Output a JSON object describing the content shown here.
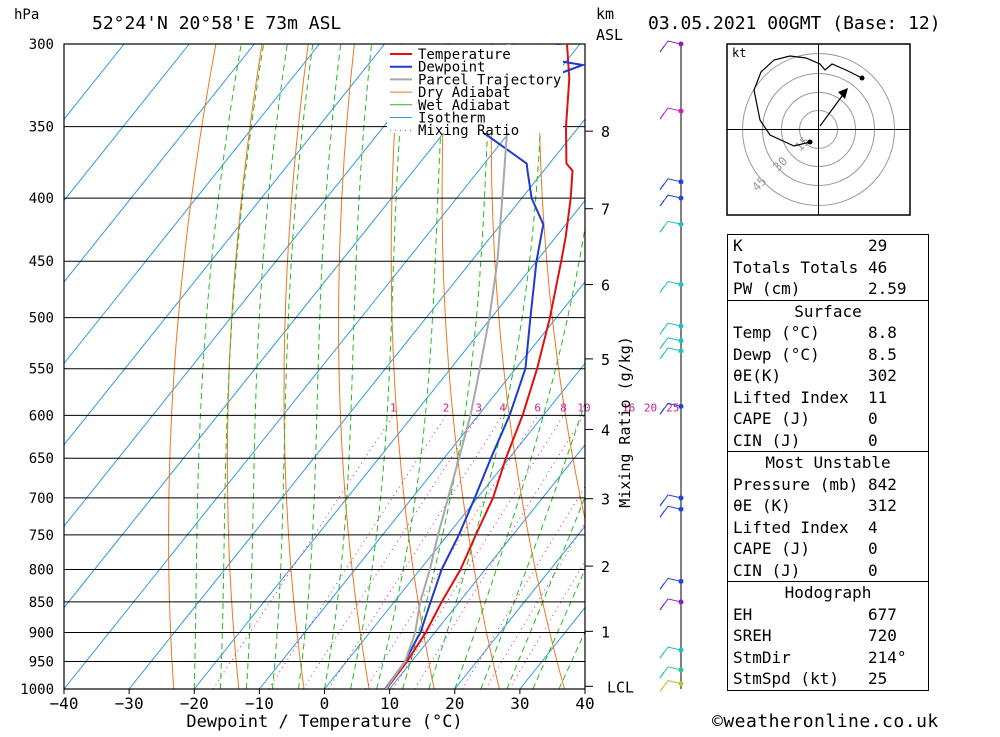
{
  "header": {
    "hpa_label": "hPa",
    "location": "52°24'N  20°58'E  73m  ASL",
    "km_label": "km",
    "asl_label": "ASL",
    "datetime": "03.05.2021  00GMT  (Base: 12)"
  },
  "chart_data": {
    "type": "line",
    "title": "52°24'N  20°58'E  73m  ASL",
    "xlabel": "Dewpoint / Temperature (°C)",
    "ylabel": "hPa",
    "x_ticks": [
      -40,
      -30,
      -20,
      -10,
      0,
      10,
      20,
      30,
      40
    ],
    "x_tick_labels": [
      "−40",
      "−30",
      "−20",
      "−10",
      "0",
      "10",
      "20",
      "30",
      "40"
    ],
    "xlim": [
      -40,
      40
    ],
    "pressure_levels": [
      300,
      350,
      400,
      450,
      500,
      550,
      600,
      650,
      700,
      750,
      800,
      850,
      900,
      950,
      1000
    ],
    "ylim": [
      1000,
      300
    ],
    "height_ticks_km": [
      "1",
      "2",
      "3",
      "4",
      "5",
      "6",
      "7",
      "8"
    ],
    "height_tick_pressures": [
      898,
      795,
      701,
      616,
      540,
      470,
      408,
      353
    ],
    "lcl_label": "LCL",
    "lcl_pressure": 995,
    "mixing_ratio_axis_label": "Mixing Ratio (g/kg)",
    "mixing_ratio_labels": [
      "1",
      "2",
      "3",
      "4",
      "6",
      "8",
      "10",
      "16",
      "20",
      "25"
    ],
    "legend": [
      "Temperature",
      "Dewpoint",
      "Parcel Trajectory",
      "Dry Adiabat",
      "Wet Adiabat",
      "Isotherm",
      "Mixing Ratio"
    ],
    "legend_position": "top-center",
    "series": [
      {
        "name": "Temperature",
        "color": "#dd1111",
        "points": [
          [
            1000,
            9.5
          ],
          [
            950,
            9.3
          ],
          [
            900,
            8.6
          ],
          [
            850,
            7.3
          ],
          [
            800,
            6.2
          ],
          [
            750,
            4.3
          ],
          [
            700,
            2.4
          ],
          [
            650,
            -0.5
          ],
          [
            600,
            -3.2
          ],
          [
            550,
            -6.7
          ],
          [
            500,
            -11
          ],
          [
            450,
            -16.2
          ],
          [
            430,
            -18.5
          ],
          [
            400,
            -22.5
          ],
          [
            380,
            -25.6
          ],
          [
            375,
            -27.4
          ],
          [
            350,
            -32
          ],
          [
            320,
            -37.4
          ],
          [
            300,
            -42
          ]
        ]
      },
      {
        "name": "Dewpoint",
        "color": "#1f3acc",
        "points": [
          [
            1000,
            9.3
          ],
          [
            950,
            9.0
          ],
          [
            910,
            8.0
          ],
          [
            900,
            7.8
          ],
          [
            875,
            6.7
          ],
          [
            850,
            5.6
          ],
          [
            800,
            3.3
          ],
          [
            750,
            1.7
          ],
          [
            700,
            -0.4
          ],
          [
            650,
            -2.8
          ],
          [
            600,
            -5.2
          ],
          [
            550,
            -8.5
          ],
          [
            500,
            -14
          ],
          [
            450,
            -20
          ],
          [
            420,
            -23.5
          ],
          [
            400,
            -28.5
          ],
          [
            380,
            -32.5
          ],
          [
            375,
            -33.5
          ],
          [
            350,
            -46
          ],
          [
            340,
            -50.5
          ],
          [
            330,
            -50.8
          ],
          [
            320,
            -41
          ],
          [
            312,
            -37
          ],
          [
            307,
            -46
          ],
          [
            300,
            -43
          ]
        ]
      },
      {
        "name": "Parcel Trajectory",
        "color": "#a8a8a8",
        "points": [
          [
            1000,
            9.4
          ],
          [
            950,
            9.0
          ],
          [
            900,
            7.0
          ],
          [
            850,
            4.0
          ],
          [
            800,
            1.5
          ],
          [
            750,
            -1.5
          ],
          [
            700,
            -4.5
          ],
          [
            650,
            -7.7
          ],
          [
            600,
            -11.2
          ],
          [
            550,
            -15.5
          ],
          [
            500,
            -20.3
          ],
          [
            450,
            -26
          ],
          [
            400,
            -33
          ],
          [
            350,
            -41
          ],
          [
            300,
            -51
          ]
        ]
      }
    ]
  },
  "wind_profile": {
    "points": [
      [
        300,
        "#8a1fc0"
      ],
      [
        340,
        "#c01fc0"
      ],
      [
        388,
        "#2244dd"
      ],
      [
        400,
        "#2244dd"
      ],
      [
        420,
        "#1fc0c0"
      ],
      [
        470,
        "#1fc0c0"
      ],
      [
        508,
        "#1fc0c0"
      ],
      [
        522,
        "#1fc0c0"
      ],
      [
        532,
        "#1fc0c0"
      ],
      [
        590,
        "#2244dd"
      ],
      [
        700,
        "#2244dd"
      ],
      [
        715,
        "#2244dd"
      ],
      [
        818,
        "#2244dd"
      ],
      [
        850,
        "#8a1fc0"
      ],
      [
        930,
        "#1fc0c0"
      ],
      [
        965,
        "#22cc88"
      ],
      [
        990,
        "#aacc22"
      ]
    ]
  },
  "hodograph": {
    "unit_label": "kt",
    "ring_labels": [
      "15",
      "30",
      "45"
    ]
  },
  "indices": {
    "top": [
      [
        "K",
        "29"
      ],
      [
        "Totals Totals",
        "46"
      ],
      [
        "PW (cm)",
        "2.59"
      ]
    ],
    "surface_title": "Surface",
    "surface": [
      [
        "Temp (°C)",
        "8.8"
      ],
      [
        "Dewp (°C)",
        "8.5"
      ],
      [
        "θE(K)",
        "302"
      ],
      [
        "Lifted Index",
        "11"
      ],
      [
        "CAPE (J)",
        "0"
      ],
      [
        "CIN (J)",
        "0"
      ]
    ],
    "most_unstable_title": "Most Unstable",
    "most_unstable": [
      [
        "Pressure (mb)",
        "842"
      ],
      [
        "θE (K)",
        "312"
      ],
      [
        "Lifted Index",
        "4"
      ],
      [
        "CAPE (J)",
        "0"
      ],
      [
        "CIN (J)",
        "0"
      ]
    ],
    "hodograph_title": "Hodograph",
    "hodograph_vals": [
      [
        "EH",
        "677"
      ],
      [
        "SREH",
        "720"
      ],
      [
        "StmDir",
        "214°"
      ],
      [
        "StmSpd (kt)",
        "25"
      ]
    ]
  },
  "footer": {
    "copyright": "©weatheronline.co.uk"
  }
}
